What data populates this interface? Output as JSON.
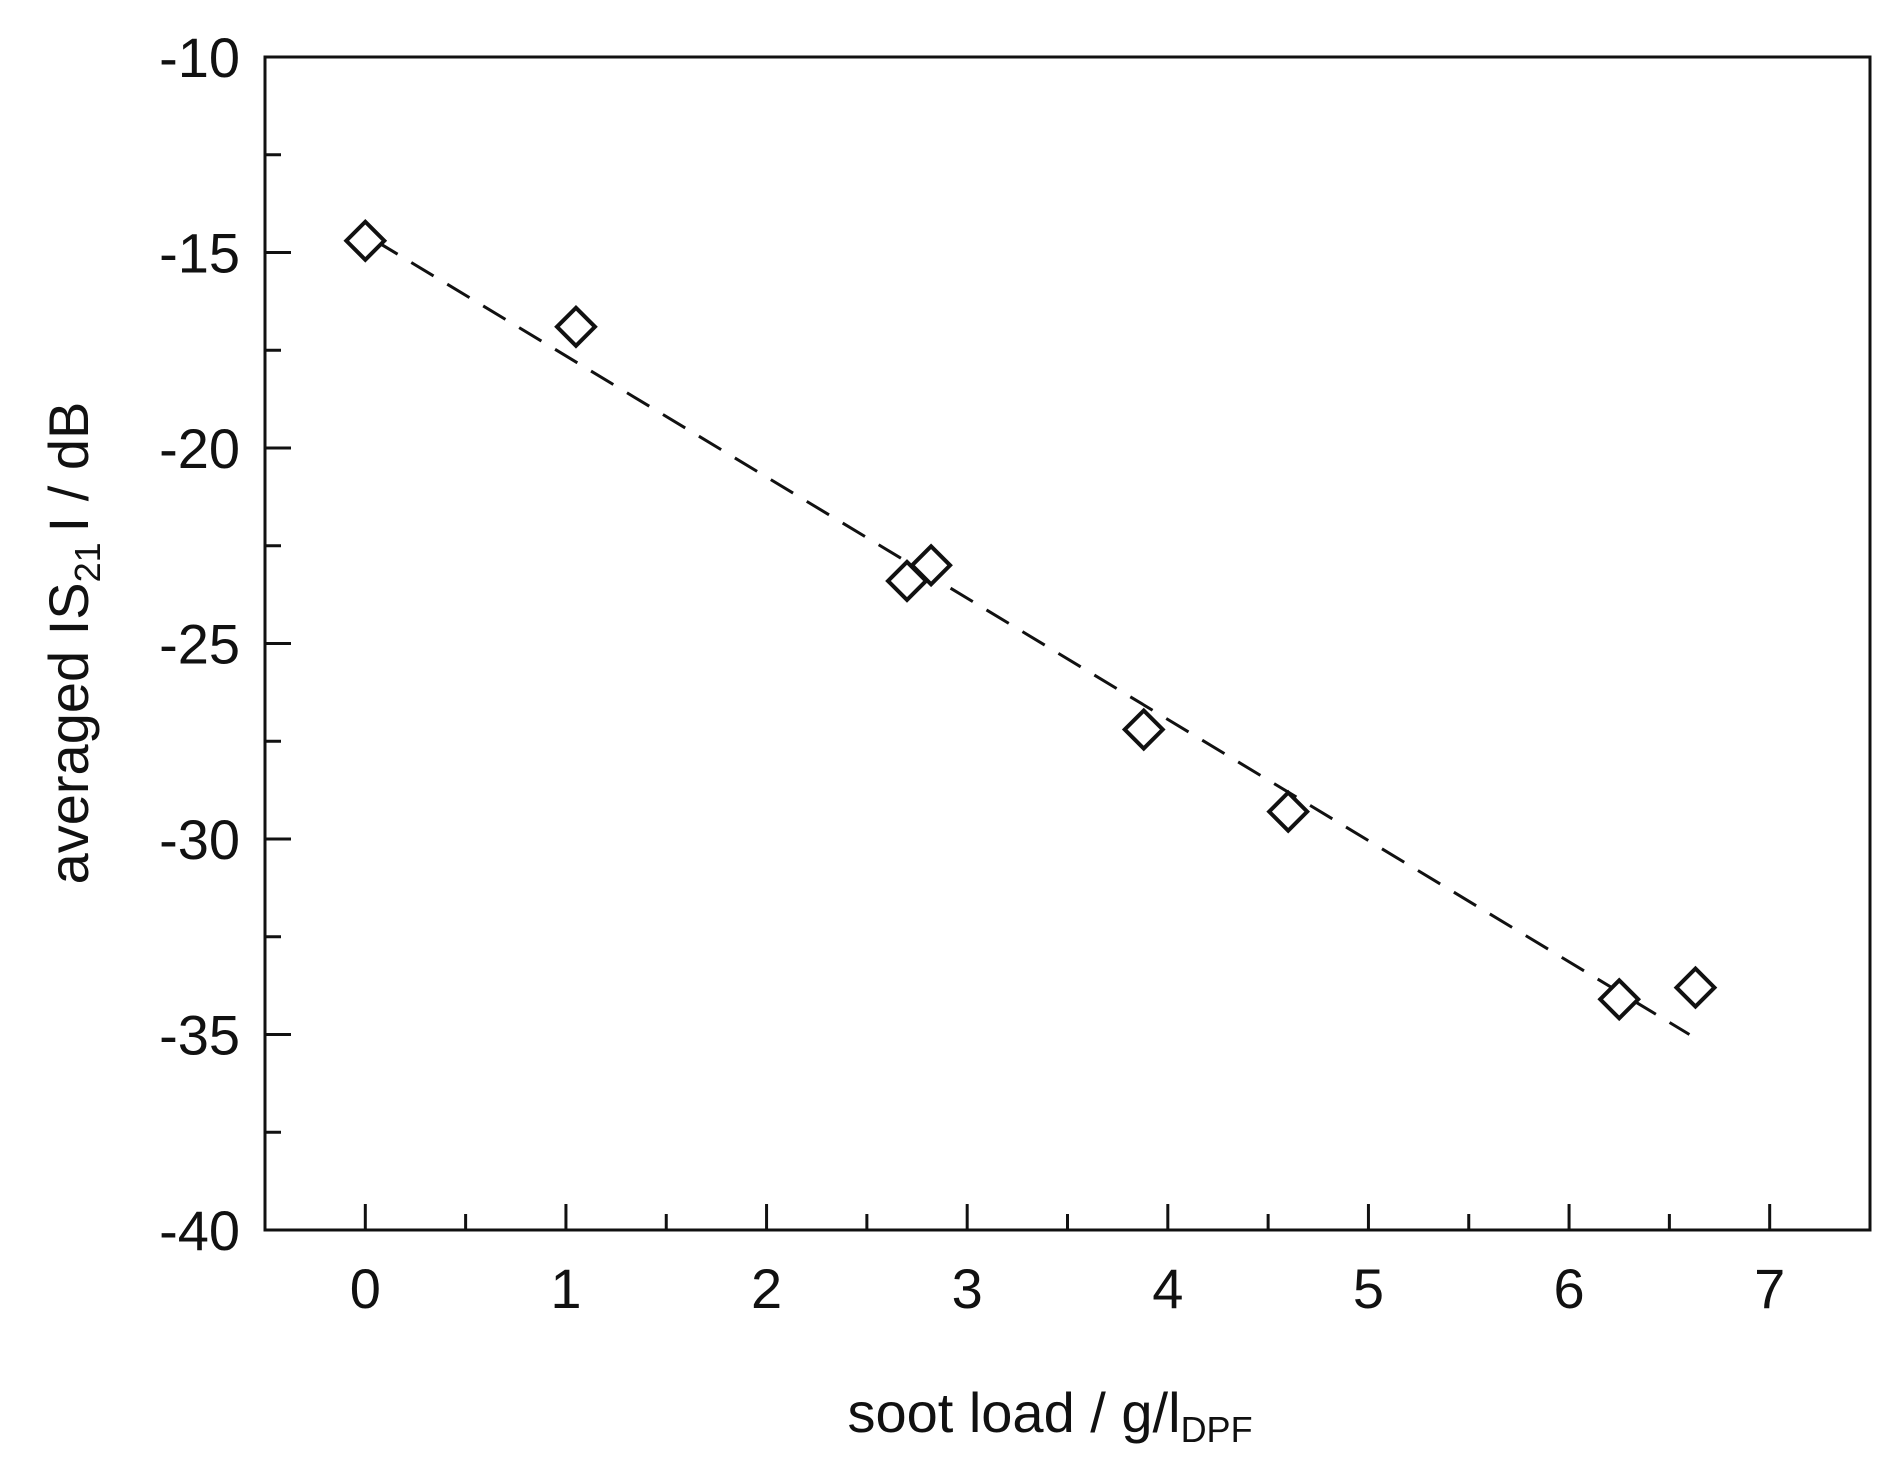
{
  "chart_data": {
    "type": "scatter",
    "xlabel": "soot load",
    "xlabel_sep": " / ",
    "xlabel_unit": "g/l",
    "xlabel_unit_sub": "DPF",
    "ylabel_pre": "averaged IS",
    "ylabel_sub": "21",
    "ylabel_post": "I / dB",
    "xlim": [
      -0.5,
      7.5
    ],
    "ylim": [
      -10,
      -40
    ],
    "x_ticks": [
      "0",
      "1",
      "2",
      "3",
      "4",
      "5",
      "6",
      "7"
    ],
    "y_ticks": [
      "-10",
      "-15",
      "-20",
      "-25",
      "-30",
      "-35",
      "-40"
    ],
    "grid": false,
    "series": [
      {
        "marker": "open-diamond",
        "x": [
          0.0,
          1.05,
          2.7,
          2.82,
          3.88,
          4.6,
          6.25,
          6.63
        ],
        "y": [
          -14.7,
          -16.9,
          -23.4,
          -23.0,
          -27.2,
          -29.3,
          -34.1,
          -33.8
        ]
      }
    ],
    "fit_line": {
      "style": "dashed",
      "x": [
        0.05,
        6.6
      ],
      "y": [
        -14.7,
        -35.0
      ]
    }
  }
}
